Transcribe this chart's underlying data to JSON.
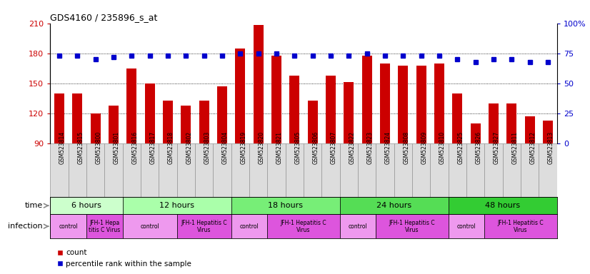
{
  "title": "GDS4160 / 235896_s_at",
  "samples": [
    "GSM523814",
    "GSM523815",
    "GSM523800",
    "GSM523801",
    "GSM523816",
    "GSM523817",
    "GSM523818",
    "GSM523802",
    "GSM523803",
    "GSM523804",
    "GSM523819",
    "GSM523820",
    "GSM523821",
    "GSM523805",
    "GSM523806",
    "GSM523807",
    "GSM523822",
    "GSM523823",
    "GSM523824",
    "GSM523808",
    "GSM523809",
    "GSM523810",
    "GSM523825",
    "GSM523826",
    "GSM523827",
    "GSM523811",
    "GSM523812",
    "GSM523813"
  ],
  "counts": [
    140,
    140,
    120,
    128,
    165,
    150,
    133,
    128,
    133,
    147,
    185,
    208,
    178,
    158,
    133,
    158,
    151,
    178,
    170,
    168,
    168,
    170,
    140,
    110,
    130,
    130,
    117,
    113
  ],
  "percentile_ranks": [
    73,
    73,
    70,
    72,
    73,
    73,
    73,
    73,
    73,
    73,
    75,
    75,
    75,
    73,
    73,
    73,
    73,
    75,
    73,
    73,
    73,
    73,
    70,
    68,
    70,
    70,
    68,
    68
  ],
  "ylim_left": [
    90,
    210
  ],
  "ylim_right": [
    0,
    100
  ],
  "yticks_left": [
    90,
    120,
    150,
    180,
    210
  ],
  "yticks_right": [
    0,
    25,
    50,
    75,
    100
  ],
  "bar_color": "#cc0000",
  "dot_color": "#0000cc",
  "time_groups": [
    {
      "label": "6 hours",
      "start": 0,
      "end": 4,
      "color": "#ccffcc"
    },
    {
      "label": "12 hours",
      "start": 4,
      "end": 10,
      "color": "#aaffaa"
    },
    {
      "label": "18 hours",
      "start": 10,
      "end": 16,
      "color": "#77ee77"
    },
    {
      "label": "24 hours",
      "start": 16,
      "end": 22,
      "color": "#55dd55"
    },
    {
      "label": "48 hours",
      "start": 22,
      "end": 28,
      "color": "#33cc33"
    }
  ],
  "infection_groups": [
    {
      "label": "control",
      "start": 0,
      "end": 2,
      "control": true
    },
    {
      "label": "JFH-1 Hepa\ntitis C Virus",
      "start": 2,
      "end": 4,
      "control": false
    },
    {
      "label": "control",
      "start": 4,
      "end": 7,
      "control": true
    },
    {
      "label": "JFH-1 Hepatitis C\nVirus",
      "start": 7,
      "end": 10,
      "control": false
    },
    {
      "label": "control",
      "start": 10,
      "end": 12,
      "control": true
    },
    {
      "label": "JFH-1 Hepatitis C\nVirus",
      "start": 12,
      "end": 16,
      "control": false
    },
    {
      "label": "control",
      "start": 16,
      "end": 18,
      "control": true
    },
    {
      "label": "JFH-1 Hepatitis C\nVirus",
      "start": 18,
      "end": 22,
      "control": false
    },
    {
      "label": "control",
      "start": 22,
      "end": 24,
      "control": true
    },
    {
      "label": "JFH-1 Hepatitis C\nVirus",
      "start": 24,
      "end": 28,
      "control": false
    }
  ],
  "control_color": "#ee99ee",
  "virus_color": "#dd55dd",
  "xlabel_bg": "#dddddd",
  "bg_color": "#ffffff",
  "left_label": "time",
  "inf_label": "infection"
}
